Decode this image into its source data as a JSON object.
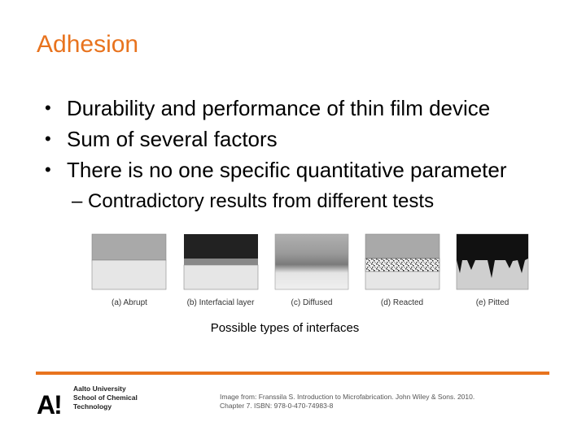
{
  "slide": {
    "title": "Adhesion",
    "bullets": [
      "Durability and performance of thin film device",
      "Sum of several factors",
      "There is no one specific quantitative parameter"
    ],
    "bullet_glyph": "•",
    "sub_bullet": "– Contradictory results from different tests",
    "figure_labels": [
      "(a) Abrupt",
      "(b) Interfacial layer",
      "(c) Diffused",
      "(d) Reacted",
      "(e) Pitted"
    ],
    "caption": "Possible types of interfaces",
    "accent_color": "#e8731e"
  },
  "footer": {
    "logo_text": "A!",
    "university_lines": [
      "Aalto University",
      "School of Chemical",
      "Technology"
    ],
    "credit_line1": "Image from: Franssila S. Introduction to Microfabrication. John Wiley & Sons. 2010.",
    "credit_line2": "Chapter 7. ISBN: 978-0-470-74983-8"
  }
}
